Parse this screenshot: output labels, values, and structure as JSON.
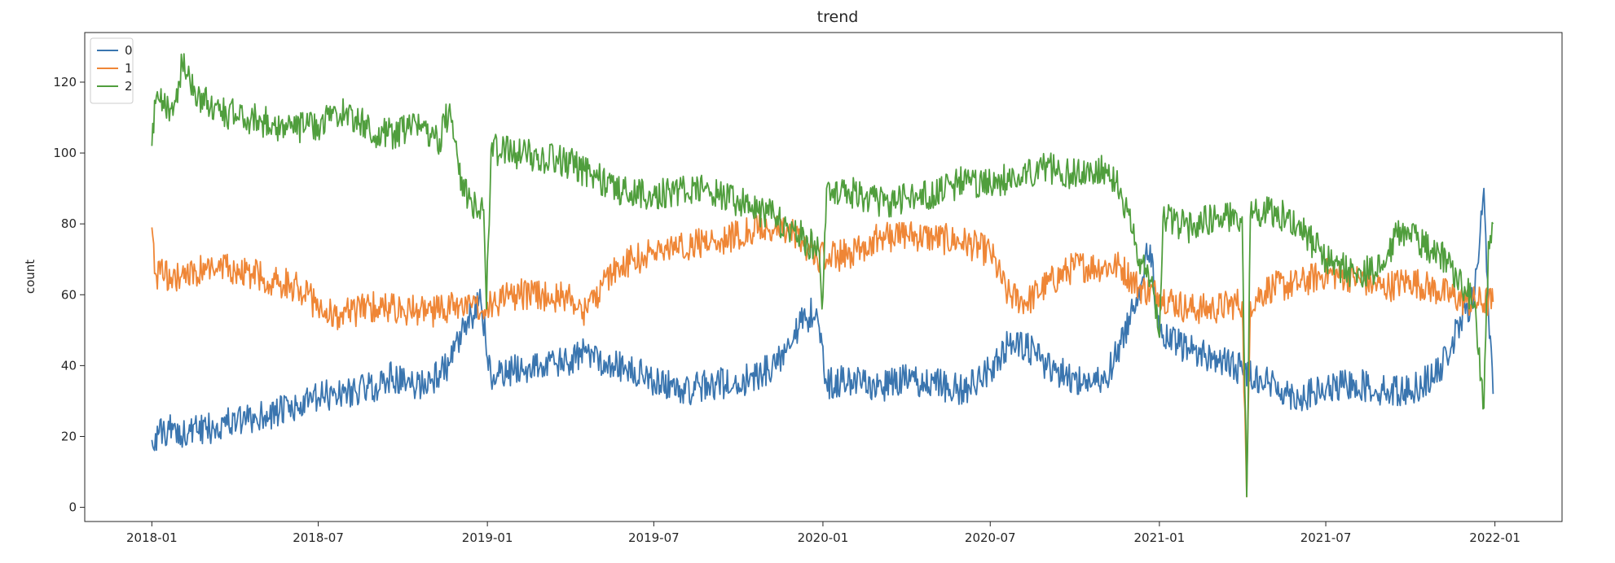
{
  "chart_data": {
    "type": "line",
    "title": "trend",
    "xlabel": "",
    "ylabel": "count",
    "xlim": [
      "2017-10-20",
      "2022-03-15"
    ],
    "ylim": [
      -4,
      134
    ],
    "x_ticks": [
      {
        "date": "2018-01-01",
        "label": "2018-01"
      },
      {
        "date": "2018-07-01",
        "label": "2018-07"
      },
      {
        "date": "2019-01-01",
        "label": "2019-01"
      },
      {
        "date": "2019-07-01",
        "label": "2019-07"
      },
      {
        "date": "2020-01-01",
        "label": "2020-01"
      },
      {
        "date": "2020-07-01",
        "label": "2020-07"
      },
      {
        "date": "2021-01-01",
        "label": "2021-01"
      },
      {
        "date": "2021-07-01",
        "label": "2021-07"
      },
      {
        "date": "2022-01-01",
        "label": "2022-01"
      }
    ],
    "y_ticks": [
      0,
      20,
      40,
      60,
      80,
      100,
      120
    ],
    "grid": false,
    "legend_position": "top-left",
    "series": [
      {
        "name": "0",
        "color": "#3a75af",
        "points": [
          [
            "2018-01-01",
            19
          ],
          [
            "2018-01-20",
            22
          ],
          [
            "2018-02-10",
            21
          ],
          [
            "2018-03-01",
            22
          ],
          [
            "2018-03-20",
            24
          ],
          [
            "2018-04-10",
            24
          ],
          [
            "2018-05-01",
            26
          ],
          [
            "2018-05-20",
            27
          ],
          [
            "2018-06-10",
            28
          ],
          [
            "2018-07-01",
            31
          ],
          [
            "2018-07-20",
            32
          ],
          [
            "2018-08-10",
            33
          ],
          [
            "2018-09-01",
            34
          ],
          [
            "2018-09-20",
            37
          ],
          [
            "2018-10-10",
            34
          ],
          [
            "2018-11-01",
            36
          ],
          [
            "2018-11-20",
            40
          ],
          [
            "2018-12-10",
            52
          ],
          [
            "2018-12-25",
            58
          ],
          [
            "2019-01-05",
            36
          ],
          [
            "2019-02-01",
            39
          ],
          [
            "2019-03-01",
            40
          ],
          [
            "2019-04-01",
            41
          ],
          [
            "2019-04-20",
            44
          ],
          [
            "2019-05-10",
            41
          ],
          [
            "2019-06-01",
            39
          ],
          [
            "2019-07-01",
            36
          ],
          [
            "2019-08-01",
            33
          ],
          [
            "2019-08-20",
            34
          ],
          [
            "2019-09-10",
            35
          ],
          [
            "2019-10-01",
            35
          ],
          [
            "2019-10-20",
            37
          ],
          [
            "2019-11-10",
            40
          ],
          [
            "2019-12-01",
            50
          ],
          [
            "2019-12-25",
            56
          ],
          [
            "2020-01-05",
            35
          ],
          [
            "2020-02-01",
            36
          ],
          [
            "2020-03-01",
            34
          ],
          [
            "2020-04-01",
            36
          ],
          [
            "2020-05-01",
            35
          ],
          [
            "2020-06-01",
            33
          ],
          [
            "2020-07-01",
            39
          ],
          [
            "2020-07-20",
            46
          ],
          [
            "2020-08-10",
            45
          ],
          [
            "2020-09-01",
            40
          ],
          [
            "2020-10-01",
            36
          ],
          [
            "2020-11-01",
            35
          ],
          [
            "2020-11-20",
            46
          ],
          [
            "2020-12-10",
            62
          ],
          [
            "2020-12-22",
            74
          ],
          [
            "2021-01-01",
            48
          ],
          [
            "2021-02-01",
            45
          ],
          [
            "2021-03-01",
            42
          ],
          [
            "2021-04-01",
            39
          ],
          [
            "2021-05-01",
            35
          ],
          [
            "2021-06-01",
            31
          ],
          [
            "2021-07-01",
            33
          ],
          [
            "2021-08-01",
            35
          ],
          [
            "2021-09-01",
            33
          ],
          [
            "2021-10-01",
            33
          ],
          [
            "2021-11-01",
            38
          ],
          [
            "2021-11-25",
            52
          ],
          [
            "2021-12-10",
            60
          ],
          [
            "2021-12-20",
            90
          ],
          [
            "2021-12-25",
            55
          ],
          [
            "2021-12-30",
            32
          ]
        ]
      },
      {
        "name": "1",
        "color": "#ef8636",
        "points": [
          [
            "2018-01-01",
            79
          ],
          [
            "2018-01-05",
            66
          ],
          [
            "2018-02-01",
            65
          ],
          [
            "2018-03-01",
            67
          ],
          [
            "2018-04-01",
            67
          ],
          [
            "2018-05-01",
            65
          ],
          [
            "2018-06-01",
            63
          ],
          [
            "2018-06-20",
            60
          ],
          [
            "2018-07-01",
            56
          ],
          [
            "2018-07-20",
            54
          ],
          [
            "2018-08-10",
            55
          ],
          [
            "2018-09-01",
            57
          ],
          [
            "2018-10-01",
            56
          ],
          [
            "2018-11-01",
            55
          ],
          [
            "2018-12-01",
            57
          ],
          [
            "2018-12-25",
            55
          ],
          [
            "2019-01-05",
            58
          ],
          [
            "2019-02-01",
            60
          ],
          [
            "2019-03-01",
            60
          ],
          [
            "2019-04-01",
            59
          ],
          [
            "2019-04-20",
            55
          ],
          [
            "2019-05-10",
            65
          ],
          [
            "2019-06-01",
            69
          ],
          [
            "2019-07-01",
            72
          ],
          [
            "2019-08-01",
            74
          ],
          [
            "2019-09-01",
            75
          ],
          [
            "2019-10-01",
            77
          ],
          [
            "2019-11-01",
            79
          ],
          [
            "2019-12-01",
            77
          ],
          [
            "2019-12-25",
            71
          ],
          [
            "2020-01-05",
            70
          ],
          [
            "2020-02-01",
            72
          ],
          [
            "2020-03-01",
            76
          ],
          [
            "2020-04-01",
            77
          ],
          [
            "2020-05-01",
            76
          ],
          [
            "2020-06-01",
            75
          ],
          [
            "2020-07-01",
            72
          ],
          [
            "2020-07-20",
            60
          ],
          [
            "2020-08-10",
            58
          ],
          [
            "2020-09-01",
            63
          ],
          [
            "2020-10-01",
            68
          ],
          [
            "2020-11-01",
            68
          ],
          [
            "2020-11-20",
            68
          ],
          [
            "2020-12-10",
            62
          ],
          [
            "2021-01-01",
            60
          ],
          [
            "2021-02-01",
            56
          ],
          [
            "2021-03-01",
            56
          ],
          [
            "2021-04-01",
            58
          ],
          [
            "2021-04-06",
            3
          ],
          [
            "2021-04-10",
            58
          ],
          [
            "2021-05-01",
            62
          ],
          [
            "2021-06-01",
            63
          ],
          [
            "2021-07-01",
            66
          ],
          [
            "2021-08-01",
            65
          ],
          [
            "2021-09-01",
            62
          ],
          [
            "2021-10-01",
            64
          ],
          [
            "2021-11-01",
            61
          ],
          [
            "2021-12-01",
            58
          ],
          [
            "2021-12-30",
            58
          ]
        ]
      },
      {
        "name": "2",
        "color": "#509e3d",
        "points": [
          [
            "2018-01-01",
            102
          ],
          [
            "2018-01-05",
            114
          ],
          [
            "2018-01-25",
            113
          ],
          [
            "2018-02-03",
            125
          ],
          [
            "2018-02-20",
            116
          ],
          [
            "2018-03-15",
            112
          ],
          [
            "2018-04-10",
            110
          ],
          [
            "2018-05-01",
            109
          ],
          [
            "2018-06-01",
            107
          ],
          [
            "2018-07-01",
            108
          ],
          [
            "2018-07-20",
            112
          ],
          [
            "2018-08-10",
            110
          ],
          [
            "2018-09-01",
            105
          ],
          [
            "2018-10-01",
            106
          ],
          [
            "2018-10-20",
            108
          ],
          [
            "2018-11-10",
            104
          ],
          [
            "2018-11-20",
            112
          ],
          [
            "2018-12-01",
            94
          ],
          [
            "2018-12-15",
            86
          ],
          [
            "2018-12-28",
            84
          ],
          [
            "2018-12-31",
            56
          ],
          [
            "2019-01-05",
            101
          ],
          [
            "2019-02-01",
            100
          ],
          [
            "2019-03-01",
            99
          ],
          [
            "2019-04-01",
            97
          ],
          [
            "2019-05-01",
            93
          ],
          [
            "2019-06-01",
            89
          ],
          [
            "2019-07-01",
            88
          ],
          [
            "2019-08-01",
            90
          ],
          [
            "2019-09-01",
            89
          ],
          [
            "2019-10-01",
            86
          ],
          [
            "2019-11-01",
            83
          ],
          [
            "2019-12-01",
            78
          ],
          [
            "2019-12-28",
            72
          ],
          [
            "2019-12-31",
            56
          ],
          [
            "2020-01-05",
            90
          ],
          [
            "2020-02-01",
            89
          ],
          [
            "2020-03-01",
            86
          ],
          [
            "2020-04-01",
            87
          ],
          [
            "2020-05-01",
            88
          ],
          [
            "2020-06-01",
            92
          ],
          [
            "2020-07-01",
            91
          ],
          [
            "2020-08-01",
            94
          ],
          [
            "2020-09-01",
            96
          ],
          [
            "2020-10-01",
            94
          ],
          [
            "2020-11-01",
            96
          ],
          [
            "2020-11-20",
            90
          ],
          [
            "2020-12-10",
            70
          ],
          [
            "2020-12-25",
            62
          ],
          [
            "2021-01-01",
            48
          ],
          [
            "2021-01-05",
            82
          ],
          [
            "2021-02-01",
            79
          ],
          [
            "2021-03-01",
            82
          ],
          [
            "2021-04-01",
            82
          ],
          [
            "2021-04-06",
            3
          ],
          [
            "2021-04-10",
            82
          ],
          [
            "2021-05-01",
            84
          ],
          [
            "2021-06-01",
            80
          ],
          [
            "2021-07-01",
            70
          ],
          [
            "2021-08-01",
            66
          ],
          [
            "2021-09-01",
            67
          ],
          [
            "2021-09-20",
            79
          ],
          [
            "2021-10-10",
            75
          ],
          [
            "2021-11-01",
            72
          ],
          [
            "2021-11-20",
            66
          ],
          [
            "2021-12-10",
            58
          ],
          [
            "2021-12-20",
            28
          ],
          [
            "2021-12-25",
            75
          ],
          [
            "2021-12-30",
            80
          ]
        ]
      }
    ]
  }
}
